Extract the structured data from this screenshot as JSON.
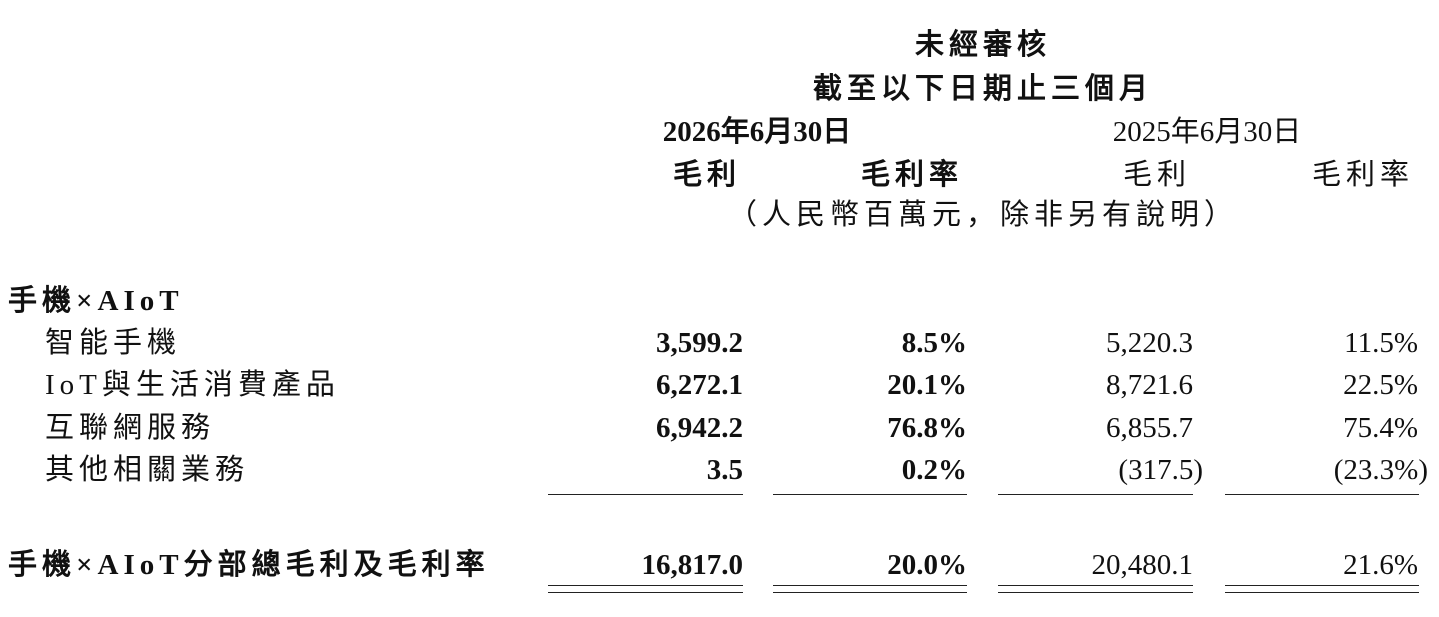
{
  "header": {
    "line1": "未經審核",
    "line2": "截至以下日期止三個月",
    "periods": [
      "2026年6月30日",
      "2025年6月30日"
    ],
    "columns": [
      "毛利",
      "毛利率",
      "毛利",
      "毛利率"
    ],
    "unit": "（人民幣百萬元，除非另有說明）"
  },
  "table": {
    "section": "手機×AIoT",
    "rows": [
      {
        "label": "智能手機",
        "values": [
          "3,599.2",
          "8.5%",
          "5,220.3",
          "11.5%"
        ]
      },
      {
        "label": "IoT與生活消費產品",
        "values": [
          "6,272.1",
          "20.1%",
          "8,721.6",
          "22.5%"
        ]
      },
      {
        "label": "互聯網服務",
        "values": [
          "6,942.2",
          "76.8%",
          "6,855.7",
          "75.4%"
        ]
      },
      {
        "label": "其他相關業務",
        "values": [
          "3.5",
          "0.2%",
          "(317.5)",
          "(23.3%)"
        ]
      }
    ],
    "total": {
      "label": "手機×AIoT分部總毛利及毛利率",
      "values": [
        "16,817.0",
        "20.0%",
        "20,480.1",
        "21.6%"
      ]
    }
  }
}
